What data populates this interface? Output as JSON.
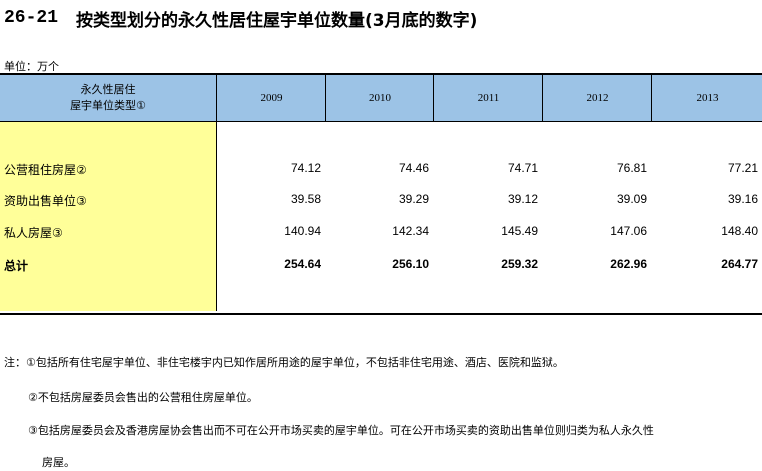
{
  "title": {
    "number": "26-21",
    "text": "按类型划分的永久性居住屋宇单位数量(3月底的数字)"
  },
  "unit": "单位：万个",
  "table": {
    "stub_header_line1": "永久性居住",
    "stub_header_line2": "屋宇单位类型①",
    "years": [
      "2009",
      "2010",
      "2011",
      "2012",
      "2013"
    ],
    "rows": [
      {
        "label": "公营租住房屋②",
        "values": [
          "74.12",
          "74.46",
          "74.71",
          "76.81",
          "77.21"
        ]
      },
      {
        "label": "资助出售单位③",
        "values": [
          "39.58",
          "39.29",
          "39.12",
          "39.09",
          "39.16"
        ]
      },
      {
        "label": "私人房屋③",
        "values": [
          "140.94",
          "142.34",
          "145.49",
          "147.06",
          "148.40"
        ]
      },
      {
        "label": "总计",
        "values": [
          "254.64",
          "256.10",
          "259.32",
          "262.96",
          "264.77"
        ]
      }
    ]
  },
  "notes": {
    "n1": "注：①包括所有住宅屋宇单位、非住宅楼宇内已知作居所用途的屋宇单位，不包括非住宅用途、酒店、医院和监狱。",
    "n2": "②不包括房屋委员会售出的公营租住房屋单位。",
    "n3": "③包括房屋委员会及香港房屋协会售出而不可在公开市场买卖的屋宇单位。可在公开市场买卖的资助出售单位则归类为私人永久性",
    "n3b": "房屋。"
  }
}
